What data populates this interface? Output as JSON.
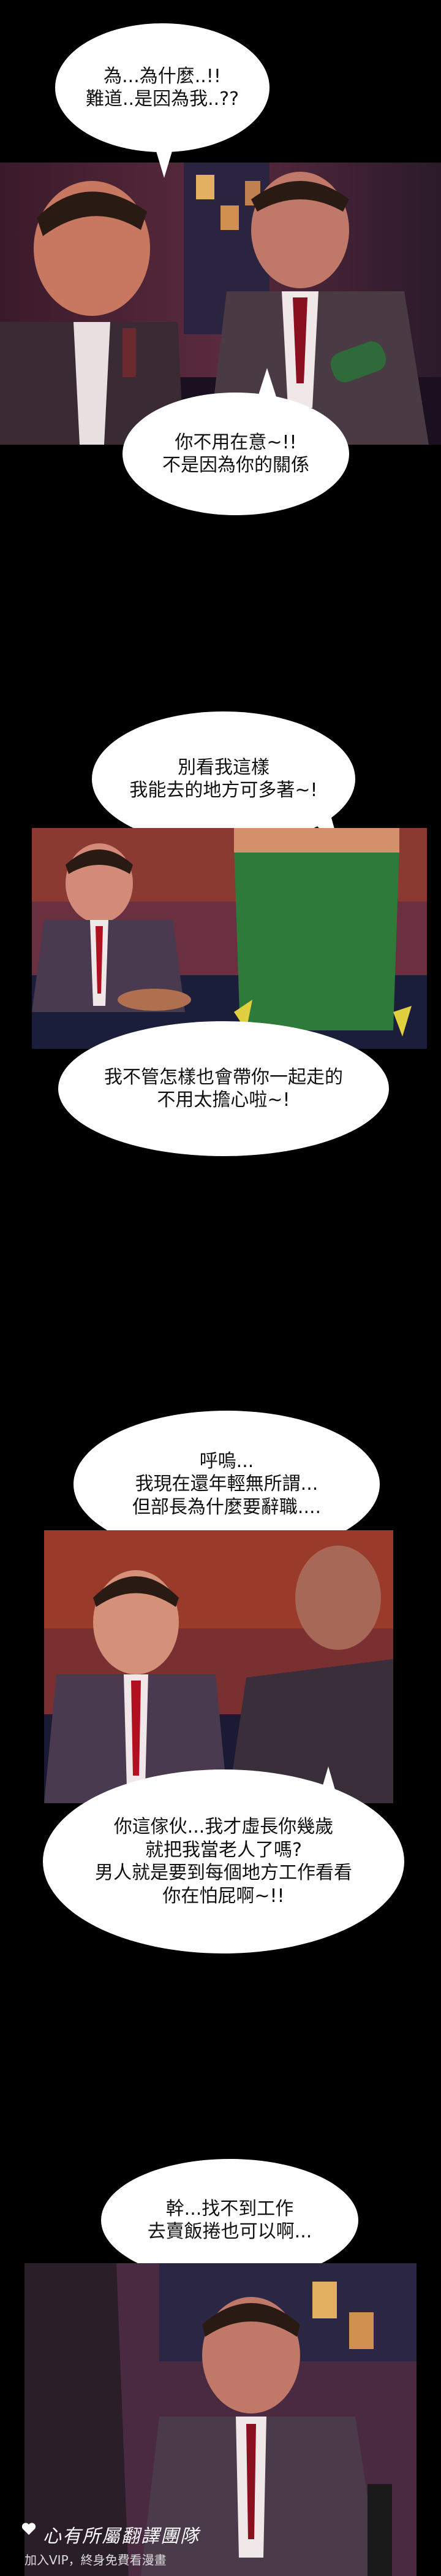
{
  "bubbles": [
    {
      "text": "為...為什麼..!!\n難道..是因為我..??"
    },
    {
      "text": "你不用在意~!!\n不是因為你的關係"
    },
    {
      "text": "別看我這樣\n我能去的地方可多著~!"
    },
    {
      "text": "我不管怎樣也會帶你一起走的\n不用太擔心啦~!"
    },
    {
      "text": "呼嗚...\n我現在還年輕無所謂...\n但部長為什麼要辭職...."
    },
    {
      "text": "你這傢伙...我才虛長你幾歲\n就把我當老人了嗎?\n男人就是要到每個地方工作看看\n你在怕屁啊~!!"
    },
    {
      "text": "幹...找不到工作\n去賣飯捲也可以啊..."
    }
  ],
  "watermark": {
    "title": "心有所屬翻譯團隊",
    "subtitle": "加入VIP，終身免費看漫畫",
    "icon": "heart-icon"
  },
  "colors": {
    "background": "#000000",
    "bubble": "#ffffff"
  }
}
